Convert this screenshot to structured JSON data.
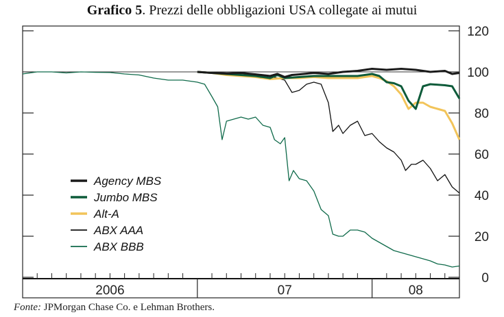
{
  "title": {
    "number": "Grafico 5",
    "rest": ". Prezzi delle obbligazioni USA collegate ai mutui"
  },
  "source": {
    "label": "Fonte:",
    "text": " JPMorgan Chase Co. e Lehman Brothers."
  },
  "chart_data": {
    "type": "line",
    "xlim": [
      0,
      30
    ],
    "x_unit": "months since Jan 2006",
    "ylim": [
      0,
      120
    ],
    "yticks": [
      0,
      20,
      40,
      60,
      80,
      100,
      120
    ],
    "x_category_labels": [
      {
        "label": "2006",
        "center": 6
      },
      {
        "label": "07",
        "center": 18
      },
      {
        "label": "08",
        "center": 27
      }
    ],
    "grid": false,
    "legend_position": "bottom-left",
    "series": [
      {
        "name": "Agency MBS",
        "color": "#1a1a1a",
        "width": 3,
        "points": [
          [
            12,
            100
          ],
          [
            13,
            99.5
          ],
          [
            14,
            99.2
          ],
          [
            15,
            99.5
          ],
          [
            16,
            98.8
          ],
          [
            17,
            98
          ],
          [
            17.5,
            99
          ],
          [
            18,
            97.5
          ],
          [
            18.5,
            98.5
          ],
          [
            19,
            98.8
          ],
          [
            20,
            99.5
          ],
          [
            21,
            99
          ],
          [
            22,
            100
          ],
          [
            23,
            100.5
          ],
          [
            24,
            101.5
          ],
          [
            25,
            101
          ],
          [
            26,
            101.5
          ],
          [
            27,
            101
          ],
          [
            28,
            100
          ],
          [
            29,
            100.5
          ],
          [
            29.5,
            99
          ],
          [
            30,
            99.5
          ]
        ]
      },
      {
        "name": "Jumbo MBS",
        "color": "#0e5b3a",
        "width": 3,
        "points": [
          [
            12,
            100
          ],
          [
            13,
            99.5
          ],
          [
            14,
            99
          ],
          [
            15,
            98.5
          ],
          [
            16,
            98
          ],
          [
            17,
            97
          ],
          [
            17.5,
            98.5
          ],
          [
            18,
            97
          ],
          [
            19,
            97.5
          ],
          [
            20,
            98
          ],
          [
            21,
            98
          ],
          [
            22,
            98
          ],
          [
            23,
            98
          ],
          [
            24,
            99
          ],
          [
            24.5,
            98
          ],
          [
            25,
            95
          ],
          [
            25.5,
            94.5
          ],
          [
            26,
            93
          ],
          [
            26.5,
            86
          ],
          [
            27,
            82
          ],
          [
            27.5,
            93
          ],
          [
            28,
            94
          ],
          [
            29,
            93.5
          ],
          [
            29.5,
            93
          ],
          [
            30,
            87
          ]
        ]
      },
      {
        "name": "Alt-A",
        "color": "#f2c45a",
        "width": 3,
        "points": [
          [
            12,
            100
          ],
          [
            13,
            99.5
          ],
          [
            14,
            98.5
          ],
          [
            15,
            98
          ],
          [
            16,
            97.5
          ],
          [
            17,
            96.5
          ],
          [
            18,
            97
          ],
          [
            19,
            97
          ],
          [
            20,
            97.5
          ],
          [
            21,
            97
          ],
          [
            22,
            97
          ],
          [
            23,
            97
          ],
          [
            24,
            98
          ],
          [
            24.5,
            97
          ],
          [
            25,
            95.5
          ],
          [
            25.5,
            93
          ],
          [
            26,
            89
          ],
          [
            26.5,
            82
          ],
          [
            27,
            85
          ],
          [
            27.5,
            85
          ],
          [
            28,
            83
          ],
          [
            28.5,
            82
          ],
          [
            29,
            81
          ],
          [
            29.5,
            75
          ],
          [
            30,
            67
          ]
        ]
      },
      {
        "name": "ABX AAA",
        "color": "#111111",
        "width": 1.3,
        "points": [
          [
            12,
            100
          ],
          [
            14,
            99.5
          ],
          [
            16,
            99
          ],
          [
            17,
            98
          ],
          [
            18,
            96
          ],
          [
            18.5,
            90
          ],
          [
            19,
            91
          ],
          [
            19.5,
            94
          ],
          [
            20,
            95
          ],
          [
            20.5,
            94
          ],
          [
            21,
            85
          ],
          [
            21.3,
            71
          ],
          [
            21.7,
            74
          ],
          [
            22,
            70
          ],
          [
            22.5,
            74
          ],
          [
            23,
            76
          ],
          [
            23.5,
            69
          ],
          [
            24,
            70
          ],
          [
            24.5,
            66
          ],
          [
            25,
            63
          ],
          [
            25.5,
            61
          ],
          [
            26,
            57
          ],
          [
            26.3,
            52
          ],
          [
            26.7,
            55
          ],
          [
            27,
            55
          ],
          [
            27.5,
            57
          ],
          [
            28,
            53
          ],
          [
            28.5,
            47
          ],
          [
            29,
            50
          ],
          [
            29.5,
            44
          ],
          [
            30,
            41
          ]
        ]
      },
      {
        "name": "ABX BBB",
        "color": "#0f6a4a",
        "width": 1.3,
        "points": [
          [
            0,
            99
          ],
          [
            1,
            100
          ],
          [
            2,
            100
          ],
          [
            3,
            99.5
          ],
          [
            4,
            100
          ],
          [
            5,
            99.8
          ],
          [
            6,
            99.7
          ],
          [
            7,
            99
          ],
          [
            8,
            98.5
          ],
          [
            9,
            97
          ],
          [
            10,
            96
          ],
          [
            11,
            96
          ],
          [
            12,
            95
          ],
          [
            12.5,
            94
          ],
          [
            13,
            88
          ],
          [
            13.4,
            83
          ],
          [
            13.7,
            67
          ],
          [
            14,
            76
          ],
          [
            14.5,
            77
          ],
          [
            15,
            78
          ],
          [
            15.5,
            77
          ],
          [
            16,
            78
          ],
          [
            16.5,
            74
          ],
          [
            17,
            73
          ],
          [
            17.3,
            67
          ],
          [
            17.7,
            65
          ],
          [
            18,
            68
          ],
          [
            18.3,
            47
          ],
          [
            18.6,
            52
          ],
          [
            19,
            48
          ],
          [
            19.5,
            47
          ],
          [
            20,
            42
          ],
          [
            20.5,
            33
          ],
          [
            21,
            30
          ],
          [
            21.3,
            21
          ],
          [
            21.7,
            20
          ],
          [
            22,
            20
          ],
          [
            22.5,
            23
          ],
          [
            23,
            23
          ],
          [
            23.5,
            22
          ],
          [
            24,
            19
          ],
          [
            24.5,
            17
          ],
          [
            25,
            15
          ],
          [
            25.5,
            13
          ],
          [
            26,
            12
          ],
          [
            26.5,
            11
          ],
          [
            27,
            10
          ],
          [
            27.5,
            9
          ],
          [
            28,
            8
          ],
          [
            28.5,
            6.5
          ],
          [
            29,
            6
          ],
          [
            29.5,
            5
          ],
          [
            30,
            5.5
          ]
        ]
      }
    ]
  }
}
